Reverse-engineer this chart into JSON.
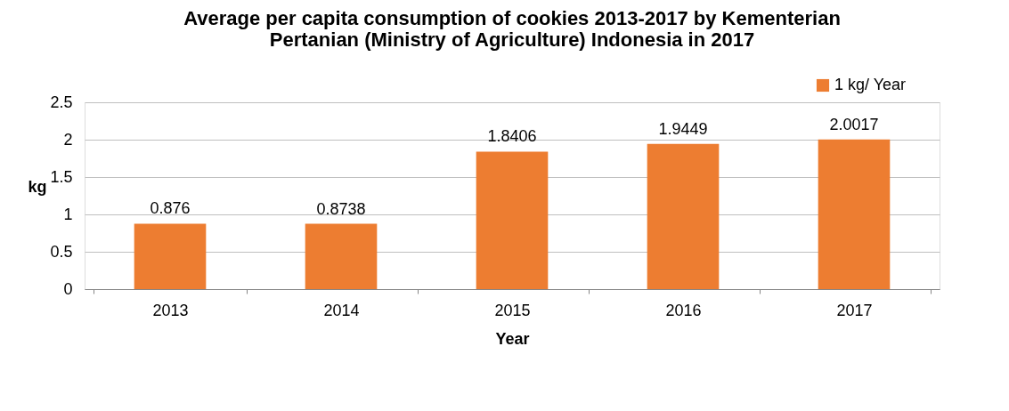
{
  "chart_data": {
    "type": "bar",
    "title": "Average per capita consumption of cookies 2013-2017 by Kementerian Pertanian (Ministry of Agriculture) Indonesia in 2017",
    "xlabel": "Year",
    "ylabel": "kg",
    "categories": [
      "2013",
      "2014",
      "2015",
      "2016",
      "2017"
    ],
    "series": [
      {
        "name": "1 kg/ Year",
        "color": "#ed7d31",
        "values": [
          0.876,
          0.8738,
          1.8406,
          1.9449,
          2.0017
        ]
      }
    ],
    "ylim": [
      0,
      2.5
    ],
    "yticks": [
      0,
      0.5,
      1,
      1.5,
      2,
      2.5
    ],
    "grid": "y",
    "legend": "top right",
    "data_labels": true
  }
}
